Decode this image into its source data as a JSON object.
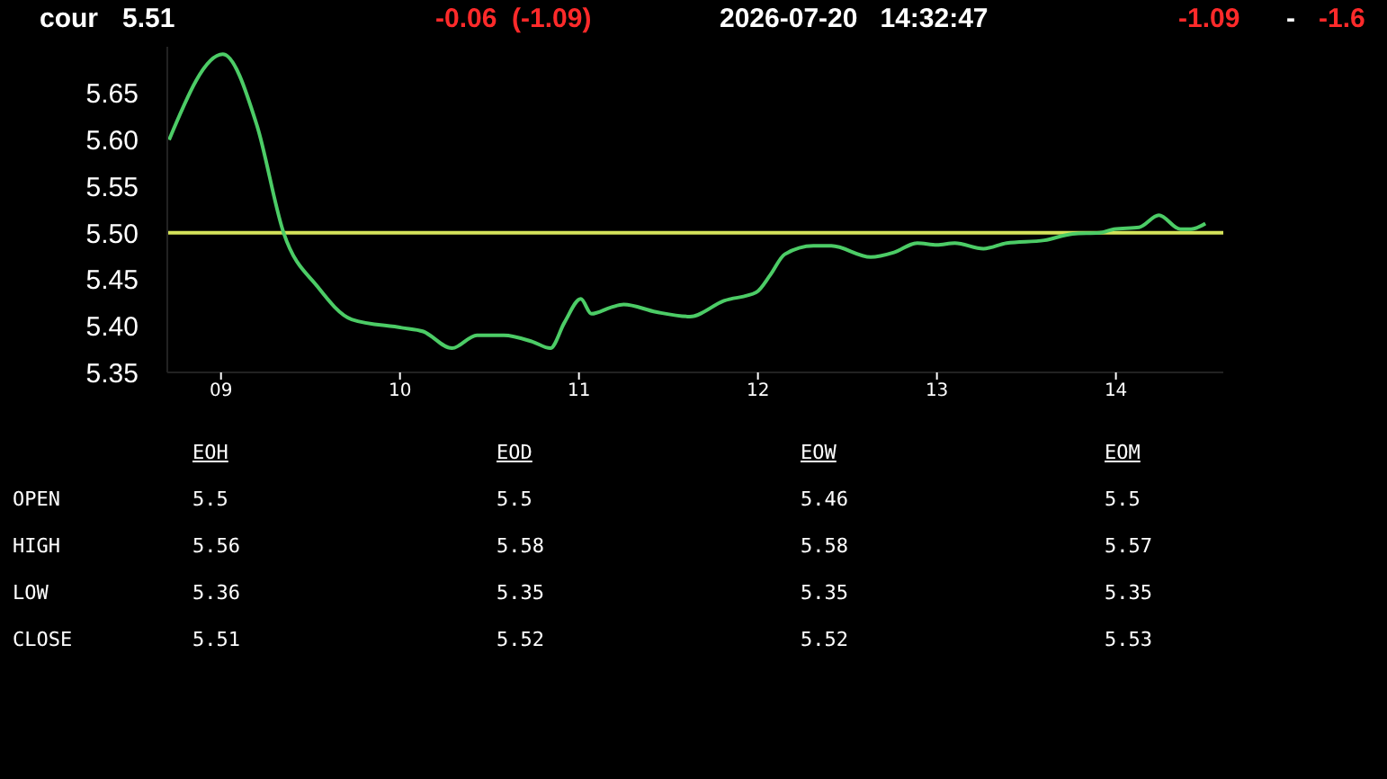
{
  "chart_data": [
    {
      "type": "line",
      "title": "cour",
      "annotations": [
        "5.51",
        "-0.06  (-1.09)",
        "2026-07-20   14:32:47",
        "-1.09",
        "-",
        "-1.6"
      ],
      "x": [
        8.71,
        9.01,
        9.2,
        9.35,
        9.54,
        9.73,
        10.01,
        10.13,
        10.29,
        10.43,
        10.58,
        10.74,
        10.84,
        10.92,
        11.01,
        11.07,
        11.18,
        11.25,
        11.43,
        11.62,
        11.81,
        11.99,
        12.07,
        12.15,
        12.31,
        12.41,
        12.63,
        12.76,
        12.89,
        13.0,
        13.1,
        13.26,
        13.39,
        13.6,
        13.76,
        13.91,
        13.99,
        14.13,
        14.24,
        14.36,
        14.42,
        14.5
      ],
      "series": [
        {
          "color": "#4ccc66",
          "values": [
            5.6,
            5.692,
            5.616,
            5.5,
            5.442,
            5.407,
            5.398,
            5.394,
            5.376,
            5.39,
            5.39,
            5.383,
            5.376,
            5.404,
            5.429,
            5.413,
            5.42,
            5.423,
            5.415,
            5.41,
            5.427,
            5.436,
            5.455,
            5.477,
            5.486,
            5.486,
            5.474,
            5.479,
            5.489,
            5.487,
            5.489,
            5.483,
            5.489,
            5.492,
            5.499,
            5.5,
            5.504,
            5.506,
            5.519,
            5.504,
            5.504,
            5.51
          ]
        }
      ],
      "xlim": [
        8.7,
        14.6
      ],
      "xticks": [
        {
          "value": 9,
          "label": "09"
        },
        10,
        11,
        12,
        13,
        14
      ],
      "ylim": [
        5.35,
        5.7
      ],
      "yticks": [
        5.35,
        {
          "value": 5.4,
          "label": "5.40"
        },
        5.45,
        {
          "value": 5.5,
          "label": "5.50"
        },
        5.55,
        {
          "value": 5.6,
          "label": "5.60"
        },
        5.65
      ],
      "ref_lines": [
        {
          "axis": "y",
          "value": 5.5,
          "color": "#d4e35a"
        }
      ]
    },
    {
      "type": "other",
      "annotations": [
        "EOH",
        "EOD",
        "EOW",
        "EOM",
        "OPEN",
        "5.5",
        "5.5",
        "5.46",
        "5.5",
        "HIGH",
        "5.56",
        "5.58",
        "5.58",
        "5.57",
        "LOW",
        "5.36",
        "5.35",
        "5.35",
        "5.35",
        "CLOSE",
        "5.51",
        "5.52",
        "5.52",
        "5.53"
      ]
    }
  ]
}
